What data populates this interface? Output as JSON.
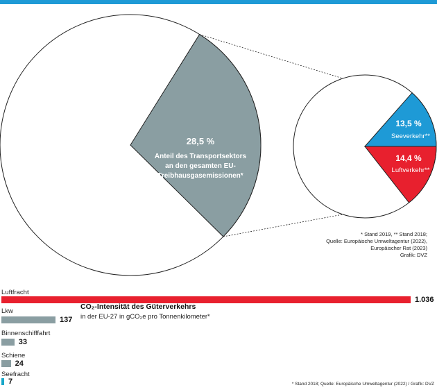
{
  "colors": {
    "accent_blue": "#1e9ad6",
    "transport_grey": "#8a9ea2",
    "luft_red": "#e8202e",
    "see_blue": "#1e9ad6",
    "bar_grey": "#8a9ea2",
    "bar_red": "#e8202e",
    "bar_teal": "#18a7c9"
  },
  "chart_data": [
    {
      "type": "pie",
      "title": "",
      "slices": [
        {
          "value": 28.5,
          "value_label": "28,5 %",
          "label": "Anteil des Transportsektors an den gesamten EU-Treibhausgasemissionen*",
          "label_lines": [
            "Anteil des Transportsektors",
            "an den gesamten EU-",
            "Treibhausgasemissionen*"
          ]
        }
      ]
    },
    {
      "type": "pie",
      "title": "",
      "slices": [
        {
          "value": 13.5,
          "value_label": "13,5 %",
          "label": "Seeverkehr**"
        },
        {
          "value": 14.4,
          "value_label": "14,4 %",
          "label": "Luftverkehr**"
        }
      ],
      "notes": [
        "* Stand 2019, ** Stand 2018;",
        "Quelle: Europäische Umweltagentur (2022),",
        "Europäischer Rat (2023)",
        "Grafik: DVZ"
      ]
    },
    {
      "type": "bar",
      "orientation": "horizontal",
      "title": "CO₂-Intensität des Güterverkehrs",
      "subtitle": "in der EU-27 in gCO₂e pro Tonnenkilometer*",
      "categories": [
        "Luftfracht",
        "Lkw",
        "Binnenschifffahrt",
        "Schiene",
        "Seefracht"
      ],
      "values": [
        1036,
        137,
        33,
        24,
        7
      ],
      "value_labels": [
        "1.036",
        "137",
        "33",
        "24",
        "7"
      ],
      "source": "* Stand 2018; Quelle: Europäische Umweltagentur (2022) / Grafik: DVZ"
    }
  ]
}
